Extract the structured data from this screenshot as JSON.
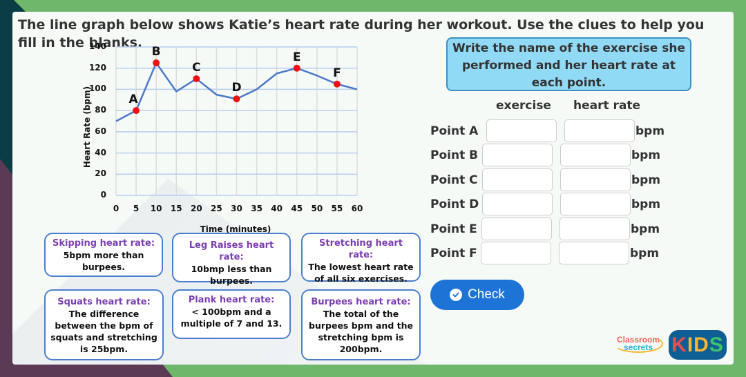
{
  "title": "The line graph below shows Katie’s heart rate during her workout. Use the clues to help you fill in the blanks.",
  "chart_data": {
    "type": "line",
    "title": "",
    "xlabel": "Time (minutes)",
    "ylabel": "Heart Rate (bpm)",
    "x": [
      0,
      5,
      10,
      15,
      20,
      25,
      30,
      35,
      40,
      45,
      50,
      55,
      60
    ],
    "series": [
      {
        "name": "Heart Rate",
        "color": "#4a78c8",
        "values": [
          70,
          80,
          125,
          98,
          110,
          95,
          91,
          100,
          115,
          120,
          113,
          105,
          100
        ]
      }
    ],
    "labeled_points": [
      {
        "label": "A",
        "x": 5,
        "y": 80
      },
      {
        "label": "B",
        "x": 10,
        "y": 125
      },
      {
        "label": "C",
        "x": 20,
        "y": 110
      },
      {
        "label": "D",
        "x": 30,
        "y": 91
      },
      {
        "label": "E",
        "x": 45,
        "y": 120
      },
      {
        "label": "F",
        "x": 55,
        "y": 105
      }
    ],
    "xticks": [
      "0",
      "5",
      "10",
      "15",
      "20",
      "25",
      "30",
      "35",
      "40",
      "45",
      "50",
      "55",
      "60"
    ],
    "yticks": [
      "0",
      "20",
      "40",
      "60",
      "80",
      "100",
      "120",
      "140"
    ],
    "xlim": [
      0,
      60
    ],
    "ylim": [
      0,
      140
    ],
    "grid": true,
    "point_color": "#ee1111"
  },
  "clues": [
    {
      "head": "Skipping heart rate:",
      "body": "5bpm more than burpees."
    },
    {
      "head": "Leg Raises heart rate:",
      "body": "10bmp less than burpees."
    },
    {
      "head": "Stretching heart rate:",
      "body": "The lowest heart rate of all six exercises."
    },
    {
      "head": "Squats heart rate:",
      "body": "The difference between the bpm of squats and stretching is 25bpm."
    },
    {
      "head": "Plank heart rate:",
      "body": "< 100bpm and a multiple of 7 and 13."
    },
    {
      "head": "Burpees heart rate:",
      "body": "The total of the burpees bpm and the stretching bpm is 200bpm."
    }
  ],
  "instruction": "Write the name of the exercise she performed and her heart rate at each point.",
  "columns": {
    "exercise": "exercise",
    "heart_rate": "heart rate"
  },
  "rows": [
    {
      "label": "Point A",
      "exercise": "",
      "heart_rate": "",
      "unit": "bpm"
    },
    {
      "label": "Point B",
      "exercise": "",
      "heart_rate": "",
      "unit": "bpm"
    },
    {
      "label": "Point C",
      "exercise": "",
      "heart_rate": "",
      "unit": "bpm"
    },
    {
      "label": "Point D",
      "exercise": "",
      "heart_rate": "",
      "unit": "bpm"
    },
    {
      "label": "Point E",
      "exercise": "",
      "heart_rate": "",
      "unit": "bpm"
    },
    {
      "label": "Point F",
      "exercise": "",
      "heart_rate": "",
      "unit": "bpm"
    }
  ],
  "check_button": {
    "label": "Check",
    "icon": "check-circle-icon"
  },
  "logos": {
    "classroom": "Classroom",
    "secrets": "secrets",
    "kids": [
      "K",
      "I",
      "D",
      "S"
    ],
    "kids_colors": [
      "#ee4b4b",
      "#f5b731",
      "#f5b731",
      "#3ec46d"
    ]
  },
  "colors": {
    "frame_green": "#6fb86b",
    "instruction_bg": "#91daf5",
    "clue_heading": "#7b3fb0",
    "clue_border": "#4a7fd0",
    "button_blue": "#1e74d6"
  }
}
